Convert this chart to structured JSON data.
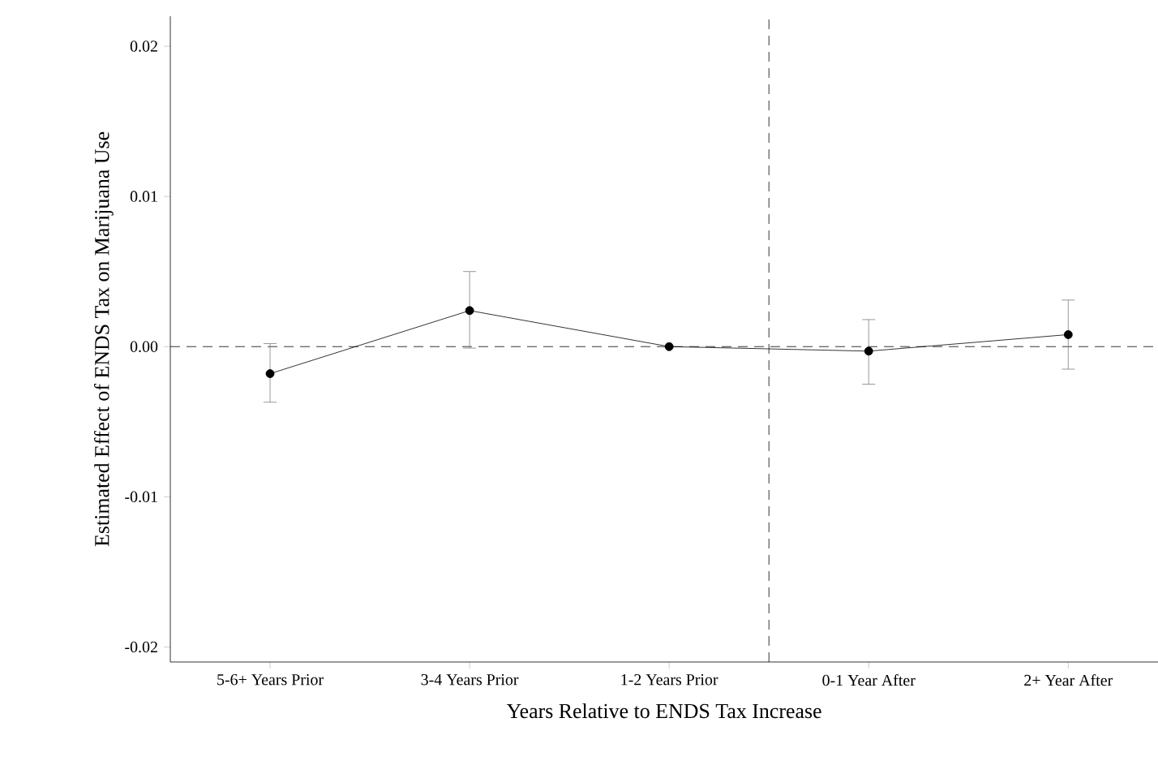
{
  "chart_data": {
    "type": "line",
    "xlabel": "Years Relative to ENDS Tax Increase",
    "ylabel": "Estimated Effect of ENDS Tax on Marijuana Use",
    "categories": [
      "5-6+ Years Prior",
      "3-4 Years Prior",
      "1-2 Years Prior",
      "0-1 Year After",
      "2+ Year After"
    ],
    "series": [
      {
        "color": "#000000",
        "values": [
          -0.0018,
          0.0024,
          0.0,
          -0.0003,
          0.0008
        ],
        "errors": [
          [
            -0.0037,
            0.0002
          ],
          [
            -0.0001,
            0.005
          ],
          null,
          [
            -0.0025,
            0.0018
          ],
          [
            -0.0015,
            0.0031
          ]
        ]
      }
    ],
    "ylim": [
      -0.021,
      0.022
    ],
    "yticks": [
      {
        "value": -0.02,
        "label": "-0.02"
      },
      {
        "value": -0.01,
        "label": "-0.01"
      },
      {
        "value": 0,
        "label": "0.00"
      },
      {
        "value": 0.01,
        "label": "0.01"
      },
      {
        "value": 0.02,
        "label": "0.02"
      }
    ],
    "marker": "circle",
    "line_style": "solid",
    "ref_lines": [
      {
        "axis": "y",
        "value": 0,
        "color": "#000000",
        "line_style": "dashed"
      }
    ]
  }
}
